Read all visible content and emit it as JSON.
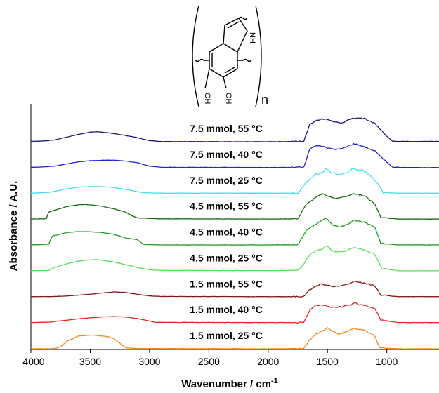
{
  "chart_data": {
    "type": "line",
    "xlabel": "Wavenumber / cm",
    "xlabel_sup": "-1",
    "ylabel": "Absorbance / A.U.",
    "xlim": [
      4000,
      560
    ],
    "x_ticks": [
      4000,
      3500,
      3000,
      2500,
      2000,
      1500,
      1000
    ],
    "y_ticks_shown": false,
    "legend": "none (series labelled directly above each trace)",
    "series": [
      {
        "name": "7.5 mmol, 55 °C",
        "color": "#1a1a7a",
        "points": [
          [
            4000,
            0.02
          ],
          [
            3900,
            0.04
          ],
          [
            3800,
            0.1
          ],
          [
            3700,
            0.25
          ],
          [
            3600,
            0.4
          ],
          [
            3500,
            0.53
          ],
          [
            3450,
            0.55
          ],
          [
            3400,
            0.53
          ],
          [
            3300,
            0.45
          ],
          [
            3200,
            0.34
          ],
          [
            3100,
            0.22
          ],
          [
            3000,
            0.06
          ],
          [
            2900,
            0.01
          ],
          [
            2000,
            0.0
          ],
          [
            1700,
            0.02
          ],
          [
            1650,
            0.95
          ],
          [
            1600,
            1.15
          ],
          [
            1540,
            1.25
          ],
          [
            1500,
            1.2
          ],
          [
            1440,
            1.1
          ],
          [
            1380,
            1.02
          ],
          [
            1330,
            1.18
          ],
          [
            1280,
            1.3
          ],
          [
            1230,
            1.3
          ],
          [
            1180,
            1.25
          ],
          [
            1100,
            1.0
          ],
          [
            1000,
            0.3
          ],
          [
            950,
            0.02
          ],
          [
            800,
            0.02
          ],
          [
            560,
            0.02
          ]
        ]
      },
      {
        "name": "7.5 mmol, 40 °C",
        "color": "#2323d0",
        "points": [
          [
            4000,
            0.02
          ],
          [
            3900,
            0.04
          ],
          [
            3800,
            0.08
          ],
          [
            3700,
            0.2
          ],
          [
            3600,
            0.32
          ],
          [
            3500,
            0.38
          ],
          [
            3400,
            0.4
          ],
          [
            3300,
            0.41
          ],
          [
            3200,
            0.36
          ],
          [
            3100,
            0.27
          ],
          [
            3000,
            0.08
          ],
          [
            2900,
            0.02
          ],
          [
            2000,
            0.01
          ],
          [
            1700,
            0.02
          ],
          [
            1650,
            1.0
          ],
          [
            1600,
            1.2
          ],
          [
            1550,
            1.18
          ],
          [
            1500,
            1.08
          ],
          [
            1440,
            1.0
          ],
          [
            1380,
            1.02
          ],
          [
            1330,
            1.18
          ],
          [
            1280,
            1.3
          ],
          [
            1230,
            1.25
          ],
          [
            1180,
            1.1
          ],
          [
            1100,
            0.92
          ],
          [
            1000,
            0.3
          ],
          [
            950,
            0.02
          ],
          [
            800,
            0.01
          ],
          [
            560,
            0.0
          ]
        ]
      },
      {
        "name": "7.5 mmol, 25 °C",
        "color": "#3fe0ec",
        "points": [
          [
            4000,
            0.02
          ],
          [
            3850,
            0.06
          ],
          [
            3800,
            0.12
          ],
          [
            3700,
            0.25
          ],
          [
            3600,
            0.34
          ],
          [
            3500,
            0.38
          ],
          [
            3400,
            0.38
          ],
          [
            3300,
            0.33
          ],
          [
            3200,
            0.22
          ],
          [
            3100,
            0.1
          ],
          [
            3050,
            0.04
          ],
          [
            2900,
            0.02
          ],
          [
            2000,
            0.02
          ],
          [
            1750,
            0.02
          ],
          [
            1680,
            0.6
          ],
          [
            1600,
            1.05
          ],
          [
            1540,
            1.15
          ],
          [
            1510,
            1.4
          ],
          [
            1480,
            1.18
          ],
          [
            1420,
            1.05
          ],
          [
            1380,
            1.05
          ],
          [
            1330,
            1.15
          ],
          [
            1290,
            1.4
          ],
          [
            1250,
            1.3
          ],
          [
            1200,
            1.25
          ],
          [
            1150,
            1.05
          ],
          [
            1080,
            0.6
          ],
          [
            1030,
            0.05
          ],
          [
            900,
            0.02
          ],
          [
            560,
            0.02
          ]
        ]
      },
      {
        "name": "4.5 mmol, 55 °C",
        "color": "#0f6b0f",
        "points": [
          [
            4000,
            0.02
          ],
          [
            3870,
            0.04
          ],
          [
            3850,
            0.4
          ],
          [
            3700,
            0.7
          ],
          [
            3600,
            0.8
          ],
          [
            3550,
            0.82
          ],
          [
            3500,
            0.8
          ],
          [
            3400,
            0.72
          ],
          [
            3300,
            0.58
          ],
          [
            3200,
            0.4
          ],
          [
            3150,
            0.2
          ],
          [
            3100,
            0.08
          ],
          [
            2900,
            0.03
          ],
          [
            2000,
            0.02
          ],
          [
            1750,
            0.03
          ],
          [
            1680,
            0.8
          ],
          [
            1600,
            1.2
          ],
          [
            1540,
            1.4
          ],
          [
            1500,
            1.3
          ],
          [
            1440,
            1.15
          ],
          [
            1400,
            1.2
          ],
          [
            1350,
            1.25
          ],
          [
            1280,
            1.4
          ],
          [
            1230,
            1.35
          ],
          [
            1180,
            1.25
          ],
          [
            1100,
            0.85
          ],
          [
            1050,
            0.1
          ],
          [
            900,
            0.02
          ],
          [
            560,
            0.02
          ]
        ]
      },
      {
        "name": "4.5 mmol, 40 °C",
        "color": "#1f9a1f",
        "points": [
          [
            4000,
            0.02
          ],
          [
            3850,
            0.06
          ],
          [
            3820,
            0.5
          ],
          [
            3700,
            0.7
          ],
          [
            3600,
            0.75
          ],
          [
            3500,
            0.74
          ],
          [
            3400,
            0.7
          ],
          [
            3300,
            0.6
          ],
          [
            3200,
            0.4
          ],
          [
            3100,
            0.3
          ],
          [
            3050,
            0.05
          ],
          [
            2900,
            0.02
          ],
          [
            2000,
            0.02
          ],
          [
            1750,
            0.03
          ],
          [
            1680,
            0.8
          ],
          [
            1600,
            1.15
          ],
          [
            1550,
            1.35
          ],
          [
            1510,
            1.5
          ],
          [
            1460,
            1.1
          ],
          [
            1400,
            1.0
          ],
          [
            1350,
            1.1
          ],
          [
            1280,
            1.35
          ],
          [
            1230,
            1.3
          ],
          [
            1180,
            1.25
          ],
          [
            1100,
            1.0
          ],
          [
            1050,
            0.1
          ],
          [
            900,
            0.02
          ],
          [
            560,
            0.02
          ]
        ]
      },
      {
        "name": "4.5 mmol, 25 °C",
        "color": "#55e255",
        "points": [
          [
            4000,
            0.02
          ],
          [
            3850,
            0.04
          ],
          [
            3800,
            0.2
          ],
          [
            3700,
            0.4
          ],
          [
            3600,
            0.55
          ],
          [
            3500,
            0.62
          ],
          [
            3450,
            0.63
          ],
          [
            3400,
            0.6
          ],
          [
            3300,
            0.5
          ],
          [
            3200,
            0.35
          ],
          [
            3100,
            0.2
          ],
          [
            3000,
            0.08
          ],
          [
            2900,
            0.04
          ],
          [
            2000,
            0.03
          ],
          [
            1750,
            0.05
          ],
          [
            1700,
            0.4
          ],
          [
            1650,
            0.9
          ],
          [
            1600,
            1.1
          ],
          [
            1550,
            1.2
          ],
          [
            1510,
            1.4
          ],
          [
            1470,
            1.15
          ],
          [
            1420,
            1.05
          ],
          [
            1350,
            1.1
          ],
          [
            1280,
            1.3
          ],
          [
            1230,
            1.25
          ],
          [
            1180,
            1.15
          ],
          [
            1100,
            0.9
          ],
          [
            1040,
            0.15
          ],
          [
            900,
            0.02
          ],
          [
            560,
            0.02
          ]
        ]
      },
      {
        "name": "1.5 mmol, 55 °C",
        "color": "#8b1414",
        "points": [
          [
            4000,
            0.02
          ],
          [
            3800,
            0.03
          ],
          [
            3700,
            0.06
          ],
          [
            3600,
            0.1
          ],
          [
            3500,
            0.15
          ],
          [
            3400,
            0.22
          ],
          [
            3300,
            0.28
          ],
          [
            3200,
            0.25
          ],
          [
            3100,
            0.15
          ],
          [
            3000,
            0.06
          ],
          [
            2900,
            0.03
          ],
          [
            2000,
            0.02
          ],
          [
            1700,
            0.02
          ],
          [
            1650,
            0.4
          ],
          [
            1600,
            0.6
          ],
          [
            1550,
            0.72
          ],
          [
            1500,
            0.65
          ],
          [
            1440,
            0.58
          ],
          [
            1400,
            0.62
          ],
          [
            1330,
            0.7
          ],
          [
            1280,
            0.85
          ],
          [
            1230,
            0.8
          ],
          [
            1180,
            0.75
          ],
          [
            1100,
            0.6
          ],
          [
            1050,
            0.1
          ],
          [
            900,
            0.02
          ],
          [
            560,
            0.02
          ]
        ]
      },
      {
        "name": "1.5 mmol, 40 °C",
        "color": "#e82424",
        "points": [
          [
            4000,
            0.02
          ],
          [
            3850,
            0.04
          ],
          [
            3800,
            0.08
          ],
          [
            3700,
            0.15
          ],
          [
            3600,
            0.22
          ],
          [
            3500,
            0.28
          ],
          [
            3400,
            0.32
          ],
          [
            3300,
            0.35
          ],
          [
            3200,
            0.32
          ],
          [
            3100,
            0.24
          ],
          [
            3000,
            0.1
          ],
          [
            2950,
            0.03
          ],
          [
            2000,
            0.02
          ],
          [
            1700,
            0.02
          ],
          [
            1650,
            0.7
          ],
          [
            1600,
            0.95
          ],
          [
            1550,
            1.0
          ],
          [
            1500,
            0.9
          ],
          [
            1440,
            0.85
          ],
          [
            1380,
            0.88
          ],
          [
            1300,
            1.0
          ],
          [
            1270,
            1.08
          ],
          [
            1230,
            1.0
          ],
          [
            1180,
            0.95
          ],
          [
            1100,
            0.8
          ],
          [
            1050,
            0.15
          ],
          [
            900,
            0.02
          ],
          [
            560,
            0.02
          ]
        ]
      },
      {
        "name": "1.5 mmol, 25 °C",
        "color": "#f08a20",
        "points": [
          [
            4000,
            0.0
          ],
          [
            3800,
            0.01
          ],
          [
            3750,
            0.1
          ],
          [
            3700,
            0.4
          ],
          [
            3600,
            0.7
          ],
          [
            3500,
            0.75
          ],
          [
            3450,
            0.74
          ],
          [
            3350,
            0.66
          ],
          [
            3300,
            0.55
          ],
          [
            3250,
            0.3
          ],
          [
            3200,
            0.05
          ],
          [
            3100,
            0.01
          ],
          [
            2000,
            0.0
          ],
          [
            1700,
            0.01
          ],
          [
            1650,
            0.5
          ],
          [
            1600,
            0.8
          ],
          [
            1550,
            0.95
          ],
          [
            1500,
            1.15
          ],
          [
            1460,
            0.95
          ],
          [
            1400,
            0.82
          ],
          [
            1340,
            0.95
          ],
          [
            1280,
            1.1
          ],
          [
            1230,
            1.08
          ],
          [
            1180,
            1.0
          ],
          [
            1100,
            0.7
          ],
          [
            1060,
            0.05
          ],
          [
            900,
            0.0
          ],
          [
            560,
            0.0
          ]
        ]
      }
    ]
  },
  "structure": {
    "oh_label": "OH",
    "nh_label": "NH",
    "repeat_subscript": "n"
  }
}
